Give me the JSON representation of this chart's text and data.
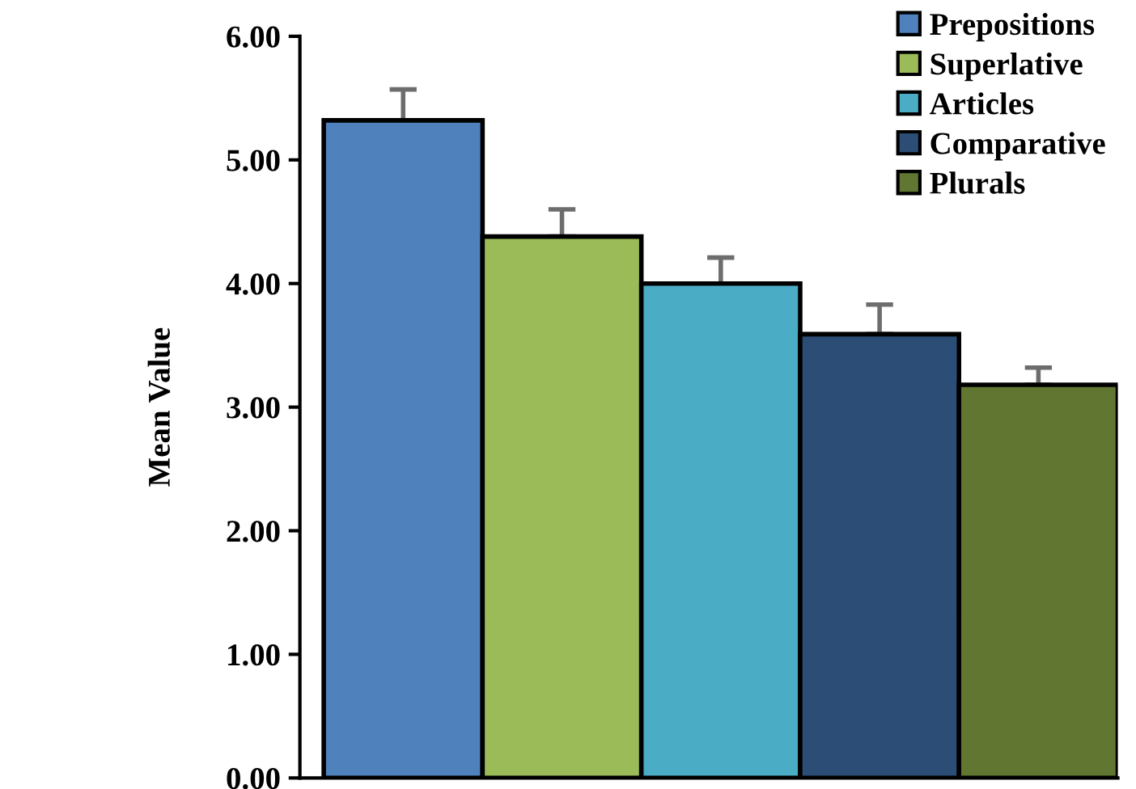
{
  "chart_data": {
    "type": "bar",
    "ylabel": "Mean Value",
    "categories": [
      null,
      null,
      null,
      null,
      null
    ],
    "series": [
      {
        "name": "Prepositions",
        "color": "#4f81bd",
        "values": [
          5.32,
          null,
          null,
          null,
          null
        ],
        "errors": [
          [
            5.32,
            5.57
          ],
          null,
          null,
          null,
          null
        ]
      },
      {
        "name": "Superlative",
        "color": "#9bbb59",
        "values": [
          null,
          4.38,
          null,
          null,
          null
        ],
        "errors": [
          null,
          [
            4.38,
            4.6
          ],
          null,
          null,
          null
        ]
      },
      {
        "name": "Articles",
        "color": "#4bacc6",
        "values": [
          null,
          null,
          4.0,
          null,
          null
        ],
        "errors": [
          null,
          null,
          [
            4.0,
            4.21
          ],
          null,
          null
        ]
      },
      {
        "name": "Comparative",
        "color": "#2c4d75",
        "values": [
          null,
          null,
          null,
          3.59,
          null
        ],
        "errors": [
          null,
          null,
          null,
          [
            3.59,
            3.83
          ],
          null
        ]
      },
      {
        "name": "Plurals",
        "color": "#617731",
        "values": [
          null,
          null,
          null,
          null,
          3.18
        ],
        "errors": [
          null,
          null,
          null,
          null,
          [
            3.18,
            3.32
          ]
        ]
      }
    ],
    "ylim": [
      0,
      6
    ],
    "yticks": [
      {
        "value": 0,
        "label": "0.00"
      },
      {
        "value": 1,
        "label": "1.00"
      },
      {
        "value": 2,
        "label": "2.00"
      },
      {
        "value": 3,
        "label": "3.00"
      },
      {
        "value": 4,
        "label": "4.00"
      },
      {
        "value": 5,
        "label": "5.00"
      },
      {
        "value": 6,
        "label": "6.00"
      }
    ],
    "grid": false,
    "legend": "top right"
  }
}
